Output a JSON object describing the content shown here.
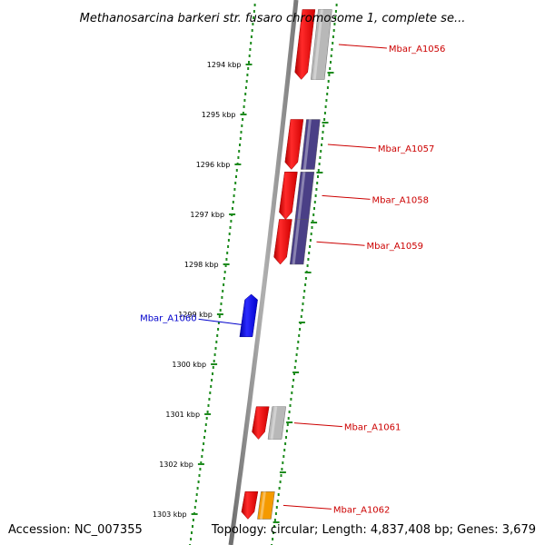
{
  "title": "Methanosarcina barkeri str. fusaro chromosome 1, complete se...",
  "footer": {
    "accession": "Accession: NC_007355",
    "summary": "Topology: circular; Length: 4,837,408 bp; Genes: 3,679"
  },
  "scale_ticks": [
    {
      "label": "1294 kbp",
      "kbp": 1294
    },
    {
      "label": "1295 kbp",
      "kbp": 1295
    },
    {
      "label": "1296 kbp",
      "kbp": 1296
    },
    {
      "label": "1297 kbp",
      "kbp": 1297
    },
    {
      "label": "1298 kbp",
      "kbp": 1298
    },
    {
      "label": "1299 kbp",
      "kbp": 1299
    },
    {
      "label": "1300 kbp",
      "kbp": 1300
    },
    {
      "label": "1301 kbp",
      "kbp": 1301
    },
    {
      "label": "1302 kbp",
      "kbp": 1302
    },
    {
      "label": "1303 kbp",
      "kbp": 1303
    }
  ],
  "genes": [
    {
      "label": "Mbar_A1056",
      "strand": "forward",
      "start_kbp": 1292.9,
      "end_kbp": 1294.3,
      "cds_color": "#b8b8b8"
    },
    {
      "label": "Mbar_A1057",
      "strand": "forward",
      "start_kbp": 1295.1,
      "end_kbp": 1296.1,
      "cds_color": "#4a3f86"
    },
    {
      "label": "Mbar_A1058",
      "strand": "forward",
      "start_kbp": 1296.15,
      "end_kbp": 1297.1,
      "cds_color": "#4a3f86"
    },
    {
      "label": "Mbar_A1059",
      "strand": "forward",
      "start_kbp": 1297.1,
      "end_kbp": 1298.0,
      "cds_color": "#4a3f86"
    },
    {
      "label": "Mbar_A1060",
      "strand": "reverse",
      "start_kbp": 1298.6,
      "end_kbp": 1299.45,
      "cds_color": "#0000ee"
    },
    {
      "label": "Mbar_A1061",
      "strand": "forward",
      "start_kbp": 1300.85,
      "end_kbp": 1301.5,
      "cds_color": "#b8b8b8"
    },
    {
      "label": "Mbar_A1062",
      "strand": "forward",
      "start_kbp": 1302.55,
      "end_kbp": 1303.1,
      "cds_color": "#f59a00"
    }
  ],
  "colors": {
    "backbone": "#8a8a8a",
    "tick_dots": "#1e8b1e",
    "gene_red": "#ee0000",
    "forward_label": "#cc0000",
    "reverse_label": "#0000cc"
  }
}
